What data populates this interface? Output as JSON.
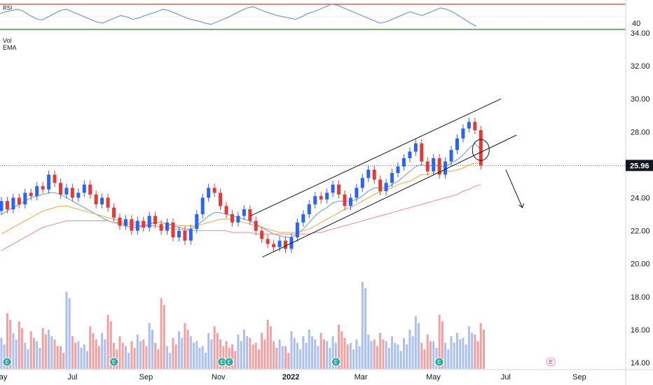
{
  "chart_data": {
    "type": "candlestick",
    "price_axis": {
      "ticks": [
        "34.00",
        "32.00",
        "30.00",
        "28.00",
        "26.00",
        "24.00",
        "22.00",
        "20.00",
        "18.00",
        "16.00",
        "14.00"
      ],
      "tick_values": [
        34,
        32,
        30,
        28,
        26,
        24,
        22,
        20,
        18,
        16,
        14
      ],
      "ylim": [
        13.8,
        34.4
      ],
      "last_price": "25.96",
      "last_price_value": 25.96
    },
    "time_axis": {
      "labels": [
        "May",
        "Jul",
        "Sep",
        "Nov",
        "2022",
        "Mar",
        "May",
        "Jul",
        "Sep"
      ],
      "bold_index": 4,
      "start": "2021-05-01",
      "end": "2022-10-10"
    },
    "rsi": {
      "label": "RSI",
      "tick": "40",
      "upper_level": 70,
      "lower_level": 30,
      "values": [
        55,
        58,
        60,
        62,
        58,
        52,
        47,
        45,
        50,
        55,
        60,
        62,
        58,
        54,
        50,
        46,
        42,
        40,
        44,
        48,
        52,
        50,
        46,
        48,
        52,
        55,
        58,
        62,
        60,
        56,
        52,
        48,
        45,
        43,
        40,
        38,
        42,
        46,
        50,
        55,
        60,
        64,
        66,
        62,
        58,
        55,
        52,
        50,
        48,
        46,
        50,
        55,
        58,
        62,
        66,
        70,
        68,
        64,
        60,
        56,
        52,
        48,
        44,
        40,
        42,
        46,
        50,
        54,
        58,
        55,
        52,
        56,
        60,
        64,
        62,
        58,
        52,
        46,
        40,
        35
      ]
    },
    "indicators_labels": [
      "Vol",
      "EMA"
    ],
    "ohlc": [
      [
        23.2,
        23.8
      ],
      [
        23.8,
        23.3
      ],
      [
        23.3,
        24.0
      ],
      [
        24.0,
        23.6
      ],
      [
        23.6,
        24.3
      ],
      [
        24.3,
        24.1
      ],
      [
        24.1,
        24.7
      ],
      [
        24.7,
        24.5
      ],
      [
        24.5,
        25.4
      ],
      [
        25.4,
        24.9
      ],
      [
        24.9,
        24.2
      ],
      [
        24.2,
        24.6
      ],
      [
        24.6,
        24.0
      ],
      [
        24.0,
        24.3
      ],
      [
        24.3,
        24.8
      ],
      [
        24.8,
        24.2
      ],
      [
        24.2,
        23.6
      ],
      [
        23.6,
        24.0
      ],
      [
        24.0,
        23.4
      ],
      [
        23.4,
        22.8
      ],
      [
        22.8,
        22.3
      ],
      [
        22.3,
        22.7
      ],
      [
        22.7,
        22.0
      ],
      [
        22.0,
        22.6
      ],
      [
        22.6,
        22.2
      ],
      [
        22.2,
        22.9
      ],
      [
        22.9,
        22.4
      ],
      [
        22.4,
        22.0
      ],
      [
        22.0,
        22.5
      ],
      [
        22.5,
        21.6
      ],
      [
        21.6,
        22.0
      ],
      [
        22.0,
        21.4
      ],
      [
        21.4,
        22.1
      ],
      [
        22.1,
        23.0
      ],
      [
        23.0,
        24.0
      ],
      [
        24.0,
        24.6
      ],
      [
        24.6,
        24.3
      ],
      [
        24.3,
        23.5
      ],
      [
        23.5,
        23.0
      ],
      [
        23.0,
        22.5
      ],
      [
        22.5,
        22.9
      ],
      [
        22.9,
        23.3
      ],
      [
        23.3,
        22.6
      ],
      [
        22.6,
        22.0
      ],
      [
        22.0,
        21.5
      ],
      [
        21.5,
        21.2
      ],
      [
        21.2,
        21.0
      ],
      [
        21.0,
        21.4
      ],
      [
        21.4,
        20.9
      ],
      [
        20.9,
        21.6
      ],
      [
        21.6,
        22.5
      ],
      [
        22.5,
        23.0
      ],
      [
        23.0,
        23.6
      ],
      [
        23.6,
        24.1
      ],
      [
        24.1,
        23.9
      ],
      [
        23.9,
        24.3
      ],
      [
        24.3,
        24.8
      ],
      [
        24.8,
        24.2
      ],
      [
        24.2,
        23.5
      ],
      [
        23.5,
        24.0
      ],
      [
        24.0,
        24.6
      ],
      [
        24.6,
        25.2
      ],
      [
        25.2,
        25.7
      ],
      [
        25.7,
        25.1
      ],
      [
        25.1,
        24.4
      ],
      [
        24.4,
        24.9
      ],
      [
        24.9,
        25.5
      ],
      [
        25.5,
        25.9
      ],
      [
        25.9,
        26.4
      ],
      [
        26.4,
        26.8
      ],
      [
        26.8,
        27.3
      ],
      [
        27.3,
        26.2
      ],
      [
        26.2,
        25.6
      ],
      [
        25.6,
        26.4
      ],
      [
        26.4,
        25.4
      ],
      [
        25.4,
        26.2
      ],
      [
        26.2,
        26.9
      ],
      [
        26.9,
        27.6
      ],
      [
        27.6,
        28.2
      ],
      [
        28.2,
        28.6
      ],
      [
        28.6,
        28.1
      ],
      [
        28.1,
        25.96
      ]
    ],
    "volume": [
      15.5,
      17.0,
      15.8,
      16.5,
      15.2,
      15.9,
      15.3,
      16.1,
      16.0,
      15.4,
      15.0,
      18.3,
      15.6,
      15.3,
      15.1,
      16.2,
      15.4,
      15.8,
      16.9,
      15.2,
      15.6,
      15.0,
      15.3,
      15.7,
      15.4,
      16.4,
      15.2,
      17.9,
      15.0,
      15.5,
      15.9,
      16.4,
      15.6,
      15.3,
      15.0,
      15.8,
      16.2,
      15.4,
      15.3,
      15.1,
      15.7,
      16.0,
      15.5,
      15.2,
      15.8,
      16.6,
      15.3,
      15.4,
      15.0,
      15.9,
      15.2,
      15.6,
      16.0,
      15.4,
      15.8,
      15.3,
      15.6,
      16.3,
      15.5,
      15.2,
      15.4,
      18.9,
      15.7,
      15.4,
      15.8,
      15.3,
      15.6,
      15.1,
      15.5,
      16.0,
      16.8,
      15.2,
      15.7,
      15.3,
      16.9,
      15.2,
      15.6,
      15.8,
      15.5,
      16.2,
      15.7,
      16.4
    ],
    "ema_series": [
      {
        "name": "",
        "color": "#5b9bd5",
        "values": [
          23.0,
          23.2,
          23.4,
          23.6,
          23.8,
          24.0,
          24.1,
          24.2,
          24.3,
          24.3,
          24.2,
          24.0,
          23.8,
          23.6,
          23.4,
          23.2,
          23.0,
          22.8,
          22.6,
          22.5,
          22.4,
          22.3,
          22.2,
          22.2,
          22.3,
          22.4,
          22.5,
          22.5,
          22.4,
          22.3,
          22.2,
          22.1,
          22.1,
          22.3,
          22.6,
          22.9,
          23.1,
          23.1,
          23.0,
          22.9,
          22.8,
          22.7,
          22.6,
          22.4,
          22.2,
          22.0,
          21.8,
          21.7,
          21.6,
          21.6,
          21.8,
          22.1,
          22.5,
          22.9,
          23.2,
          23.4,
          23.7,
          23.8,
          23.8,
          23.8,
          23.9,
          24.1,
          24.4,
          24.6,
          24.6,
          24.6,
          24.8,
          25.0,
          25.3,
          25.6,
          25.9,
          26.0,
          25.9,
          26.0,
          25.9,
          25.9,
          26.1,
          26.3,
          26.6,
          27.0,
          27.3,
          26.9
        ]
      },
      {
        "name": "",
        "color": "#f5a742",
        "values": [
          21.8,
          22.0,
          22.2,
          22.4,
          22.6,
          22.8,
          23.0,
          23.2,
          23.3,
          23.4,
          23.5,
          23.5,
          23.4,
          23.3,
          23.2,
          23.1,
          23.0,
          22.9,
          22.8,
          22.7,
          22.6,
          22.5,
          22.5,
          22.5,
          22.5,
          22.5,
          22.5,
          22.5,
          22.4,
          22.4,
          22.3,
          22.3,
          22.3,
          22.3,
          22.4,
          22.5,
          22.6,
          22.7,
          22.7,
          22.7,
          22.6,
          22.5,
          22.4,
          22.3,
          22.2,
          22.1,
          22.0,
          21.9,
          21.9,
          21.9,
          21.9,
          22.0,
          22.1,
          22.3,
          22.5,
          22.7,
          22.9,
          23.1,
          23.3,
          23.4,
          23.6,
          23.8,
          24.0,
          24.2,
          24.4,
          24.5,
          24.6,
          24.8,
          24.9,
          25.0,
          25.2,
          25.4,
          25.4,
          25.5,
          25.5,
          25.6,
          25.6,
          25.7,
          25.8,
          26.0,
          26.1,
          26.1
        ]
      },
      {
        "name": "",
        "color": "#ef8a8a",
        "values": [
          20.8,
          21.0,
          21.2,
          21.4,
          21.6,
          21.8,
          22.0,
          22.2,
          22.3,
          22.4,
          22.5,
          22.6,
          22.6,
          22.6,
          22.6,
          22.6,
          22.6,
          22.6,
          22.6,
          22.5,
          22.5,
          22.4,
          22.4,
          22.3,
          22.3,
          22.3,
          22.3,
          22.2,
          22.2,
          22.1,
          22.1,
          22.0,
          22.0,
          22.0,
          22.0,
          22.0,
          22.0,
          22.0,
          22.0,
          21.9,
          21.9,
          21.9,
          21.9,
          21.8,
          21.8,
          21.8,
          21.8,
          21.8,
          21.8,
          21.8,
          21.8,
          21.8,
          21.8,
          21.9,
          21.9,
          22.0,
          22.1,
          22.2,
          22.3,
          22.4,
          22.5,
          22.6,
          22.7,
          22.8,
          22.9,
          23.0,
          23.1,
          23.2,
          23.3,
          23.4,
          23.5,
          23.6,
          23.7,
          23.8,
          23.9,
          24.0,
          24.1,
          24.2,
          24.4,
          24.5,
          24.7,
          24.8
        ]
      }
    ],
    "earnings_markers": [
      {
        "x": "2021-05-07",
        "label": "E"
      },
      {
        "x": "2021-08-05",
        "label": "E"
      },
      {
        "x": "2021-11-04",
        "label": "E"
      },
      {
        "x": "2021-11-10",
        "label": "E"
      },
      {
        "x": "2022-02-08",
        "label": "E"
      },
      {
        "x": "2022-05-06",
        "label": "E"
      },
      {
        "x": "2022-08-08",
        "label": "E"
      }
    ],
    "channel_lines": [
      {
        "from": [
          "2021-11-28",
          22.9
        ],
        "to": [
          "2022-06-27",
          30.0
        ]
      },
      {
        "from": [
          "2021-12-08",
          20.4
        ],
        "to": [
          "2022-07-10",
          27.8
        ]
      }
    ],
    "projection_arrow": {
      "from": [
        "2022-07-01",
        25.7
      ],
      "to": [
        "2022-07-15",
        23.4
      ]
    }
  }
}
